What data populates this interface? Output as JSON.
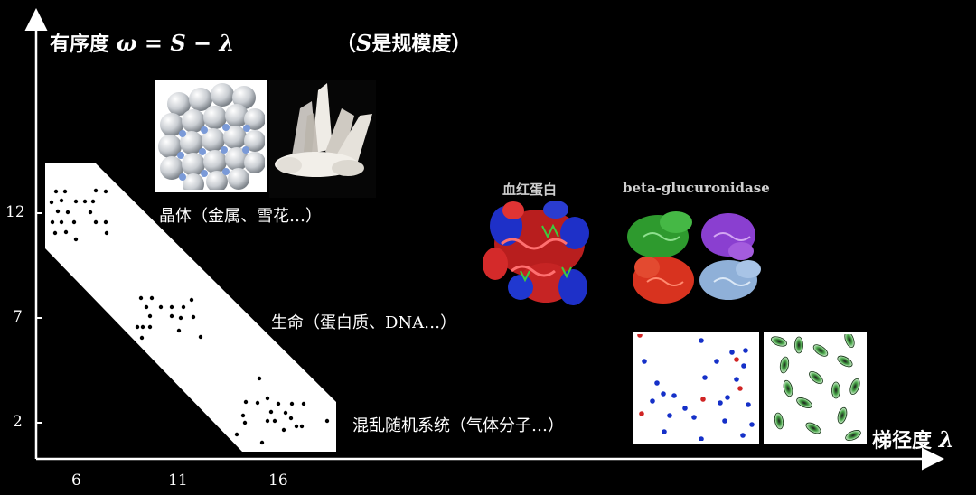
{
  "title": {
    "prefix": "有序度",
    "formula": "ω = S − λ",
    "note_open": "（",
    "note_s": "S",
    "note_text": "是规模度",
    "note_close": "）"
  },
  "x_axis": {
    "label_text": "梯径度",
    "symbol": "λ",
    "ticks": [
      "6",
      "11",
      "16"
    ]
  },
  "y_axis": {
    "ticks": [
      "12",
      "7",
      "2"
    ]
  },
  "labels": {
    "crystal": "晶体（金属、雪花…）",
    "life": "生命（蛋白质、DNA…）",
    "random": "混乱随机系统（气体分子…）",
    "hemoglobin": "血红蛋白",
    "glucuronidase": "beta-glucuronidase"
  },
  "colors": {
    "background": "#000000",
    "band": "#ffffff",
    "dot": "#000000",
    "blue_molecule": "#1530c8",
    "red_molecule": "#d02424",
    "green_molecule": "#2e8b2e"
  }
}
